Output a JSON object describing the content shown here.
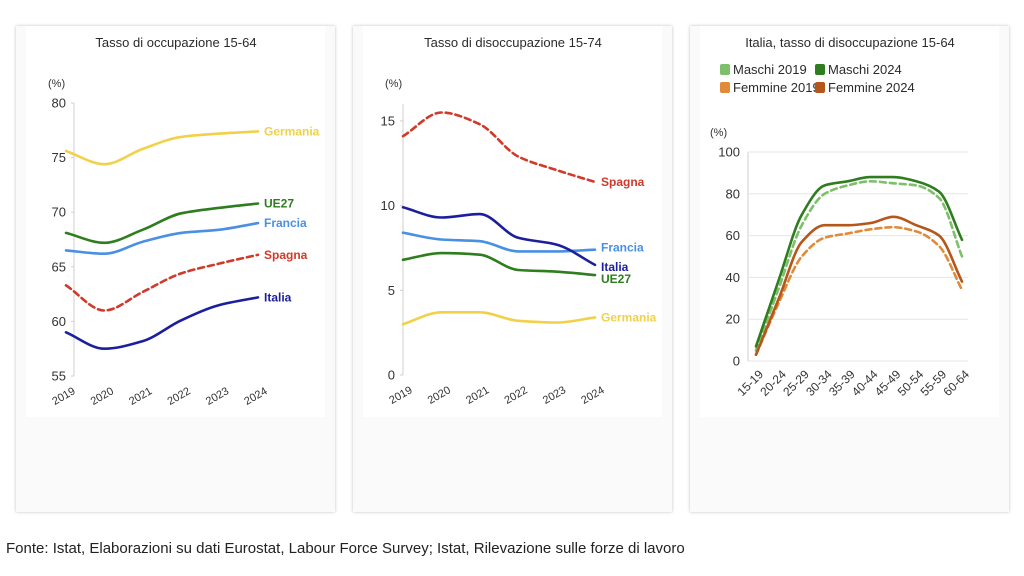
{
  "colors": {
    "Germania": "#f2d14a",
    "UE27": "#2e7d1f",
    "Francia": "#4a90e2",
    "Spagna": "#d03a2a",
    "Italia": "#1c1f9c",
    "Maschi 2019": "#7dbf6a",
    "Maschi 2024": "#2e7d1f",
    "Femmine 2019": "#e08a3a",
    "Femmine 2024": "#b5561a"
  },
  "chart_data": [
    {
      "type": "line",
      "title": "Tasso di occupazione 15-64",
      "unit": "(%)",
      "x": [
        "2019",
        "2020",
        "2021",
        "2022",
        "2023",
        "2024"
      ],
      "ylim": [
        55,
        80
      ],
      "yticks": [
        55,
        60,
        65,
        70,
        75,
        80
      ],
      "series": [
        {
          "name": "Germania",
          "label": "Germania",
          "dashed": false,
          "values": [
            75.6,
            74.4,
            75.8,
            76.9,
            77.2,
            77.4
          ]
        },
        {
          "name": "UE27",
          "label": "UE27",
          "dashed": false,
          "values": [
            68.1,
            67.2,
            68.4,
            69.9,
            70.4,
            70.8
          ]
        },
        {
          "name": "Francia",
          "label": "Francia",
          "dashed": false,
          "values": [
            66.5,
            66.2,
            67.3,
            68.1,
            68.4,
            69.0
          ]
        },
        {
          "name": "Spagna",
          "label": "Spagna",
          "dashed": true,
          "values": [
            63.3,
            61.0,
            62.7,
            64.4,
            65.3,
            66.1
          ]
        },
        {
          "name": "Italia",
          "label": "Italia",
          "dashed": false,
          "values": [
            59.0,
            57.5,
            58.2,
            60.1,
            61.5,
            62.2
          ]
        }
      ]
    },
    {
      "type": "line",
      "title": "Tasso di disoccupazione 15-74",
      "unit": "(%)",
      "x": [
        "2019",
        "2020",
        "2021",
        "2022",
        "2023",
        "2024"
      ],
      "ylim": [
        0,
        16
      ],
      "yticks": [
        0,
        5,
        10,
        15
      ],
      "series": [
        {
          "name": "Spagna",
          "label": "Spagna",
          "dashed": true,
          "values": [
            14.1,
            15.5,
            14.8,
            12.9,
            12.1,
            11.4
          ]
        },
        {
          "name": "Francia",
          "label": "Francia",
          "dashed": false,
          "values": [
            8.4,
            8.0,
            7.9,
            7.3,
            7.3,
            7.4
          ]
        },
        {
          "name": "Italia",
          "label": "Italia",
          "dashed": false,
          "values": [
            9.9,
            9.3,
            9.5,
            8.1,
            7.7,
            6.5
          ]
        },
        {
          "name": "UE27",
          "label": "UE27",
          "dashed": false,
          "values": [
            6.8,
            7.2,
            7.1,
            6.2,
            6.1,
            5.9
          ]
        },
        {
          "name": "Germania",
          "label": "Germania",
          "dashed": false,
          "values": [
            3.0,
            3.7,
            3.7,
            3.2,
            3.1,
            3.4
          ]
        }
      ]
    },
    {
      "type": "line",
      "title": "Italia, tasso di disoccupazione 15-64",
      "unit": "(%)",
      "x": [
        "15-19",
        "20-24",
        "25-29",
        "30-34",
        "35-39",
        "40-44",
        "45-49",
        "50-54",
        "55-59",
        "60-64"
      ],
      "ylim": [
        0,
        100
      ],
      "yticks": [
        0,
        20,
        40,
        60,
        80,
        100
      ],
      "legend": [
        "Maschi 2019",
        "Maschi 2024",
        "Femmine 2019",
        "Femmine 2024"
      ],
      "series": [
        {
          "name": "Maschi 2019",
          "dashed": true,
          "values": [
            5,
            35,
            65,
            80,
            84,
            86,
            85,
            84,
            78,
            50
          ]
        },
        {
          "name": "Maschi 2024",
          "dashed": false,
          "values": [
            7,
            39,
            70,
            84,
            86,
            88,
            88,
            86,
            81,
            58
          ]
        },
        {
          "name": "Femmine 2019",
          "dashed": true,
          "values": [
            3,
            28,
            50,
            59,
            61,
            63,
            64,
            62,
            55,
            34
          ]
        },
        {
          "name": "Femmine 2024",
          "dashed": false,
          "values": [
            3,
            30,
            57,
            65,
            65,
            66,
            69,
            65,
            60,
            38
          ]
        }
      ]
    }
  ],
  "source": "Fonte: Istat, Elaborazioni su dati Eurostat, Labour Force Survey; Istat, Rilevazione sulle forze di lavoro"
}
